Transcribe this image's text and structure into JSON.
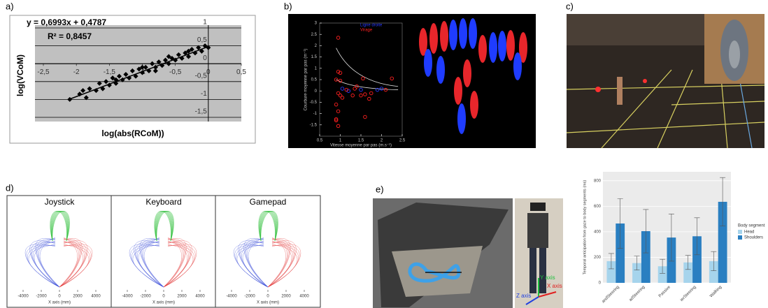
{
  "panel_labels": [
    "a)",
    "b)",
    "c)",
    "d)",
    "e)"
  ],
  "panel_e": {
    "axis_labels": [
      "Y axis",
      "Z axis",
      "X axis"
    ]
  },
  "chart_data": [
    {
      "type": "scatter",
      "annotations": [
        "y = 0,6993x + 0,4787",
        "R² = 0,8457"
      ],
      "fit": {
        "slope": 0.6993,
        "intercept": 0.4787
      },
      "xlabel": "log(abs(RCoM))",
      "ylabel": "log(VCoM)",
      "xlim": [
        -2.5,
        0.5
      ],
      "ylim": [
        -1.5,
        1
      ],
      "xticks": [
        {
          "value": -2.5,
          "label": "-2,5"
        },
        -2,
        {
          "value": -1.5,
          "label": "-1,5"
        },
        -1,
        {
          "value": -0.5,
          "label": "-0,5"
        },
        0,
        {
          "value": 0.5,
          "label": "0,5"
        }
      ],
      "yticks": [
        1,
        {
          "value": 0.5,
          "label": "0,5"
        },
        0,
        {
          "value": -0.5,
          "label": "-0,5"
        },
        -1,
        {
          "value": -1.5,
          "label": "-1,5"
        }
      ],
      "grid": true,
      "color": "#000000",
      "background": "#c0c0c0",
      "x": [
        -2.1,
        -1.95,
        -1.85,
        -1.8,
        -1.7,
        -1.65,
        -1.6,
        -1.55,
        -1.5,
        -1.45,
        -1.4,
        -1.35,
        -1.3,
        -1.25,
        -1.2,
        -1.15,
        -1.1,
        -1.05,
        -1.0,
        -0.95,
        -0.9,
        -0.85,
        -0.8,
        -0.75,
        -0.7,
        -0.65,
        -0.6,
        -0.55,
        -0.5,
        -0.45,
        -0.4,
        -0.35,
        -0.3,
        -0.25,
        -0.2,
        -0.15,
        -0.1,
        -0.05,
        0,
        -1.9,
        -1.0,
        -0.6,
        -0.3,
        -0.8,
        -1.4
      ],
      "values": [
        -1.0,
        -0.85,
        -0.95,
        -0.7,
        -0.75,
        -0.55,
        -0.7,
        -0.5,
        -0.6,
        -0.4,
        -0.55,
        -0.35,
        -0.45,
        -0.3,
        -0.4,
        -0.2,
        -0.35,
        -0.15,
        -0.25,
        -0.1,
        -0.2,
        0,
        -0.1,
        0.05,
        -0.05,
        0.1,
        0,
        0.15,
        0.1,
        0.25,
        0.15,
        0.3,
        0.2,
        0.4,
        0.3,
        0.45,
        0.35,
        0.5,
        0.45,
        -0.75,
        -0.1,
        0.2,
        0.35,
        -0.2,
        -0.45
      ]
    },
    {
      "type": "scatter",
      "xlabel": "Vitesse moyenne par pas (m.s⁻¹)",
      "ylabel": "Courbure moyenne par pas (m⁻¹)",
      "xlim": [
        0.5,
        2.5
      ],
      "ylim": [
        -2,
        3
      ],
      "xticks": [
        0.5,
        1,
        1.5,
        2,
        2.5
      ],
      "yticks": [
        -1.5,
        -1,
        -0.5,
        0,
        0.5,
        1,
        1.5,
        2,
        2.5,
        3
      ],
      "grid": false,
      "background": "#000000",
      "series": [
        {
          "name": "Ligne droite",
          "color": "#2b3bff",
          "x": [
            1.05,
            1.2,
            1.5,
            1.9,
            2.0
          ],
          "values": [
            0.1,
            0,
            0.05,
            0.05,
            0.1
          ]
        },
        {
          "name": "Virage",
          "color": "#ff2020",
          "x": [
            0.95,
            0.95,
            1.0,
            0.9,
            1.0,
            0.95,
            1.0,
            1.05,
            0.9,
            0.95,
            0.9,
            0.95,
            0.9,
            1.15,
            1.3,
            1.4,
            1.5,
            1.55,
            1.6,
            1.6,
            1.7,
            1.75,
            2.1,
            2.25,
            1.35
          ],
          "values": [
            2.35,
            0.85,
            0.8,
            0.5,
            0.45,
            -0.1,
            -0.2,
            -0.3,
            -0.6,
            -0.9,
            -1.25,
            -1.55,
            -1.3,
            0.05,
            -0.2,
            0.2,
            -0.2,
            0.55,
            -0.15,
            -1.15,
            -0.35,
            -0.1,
            0.05,
            0.55,
            0.1
          ]
        }
      ]
    },
    {
      "type": "trajectory",
      "title": "Joystick",
      "xlabel": "X axis (mm)",
      "xlim": [
        -5000,
        5000
      ],
      "xticks": [
        -4000,
        -2000,
        0,
        2000,
        4000
      ]
    },
    {
      "type": "trajectory",
      "title": "Keyboard",
      "xlabel": "X axis (mm)",
      "xlim": [
        -5000,
        5000
      ],
      "xticks": [
        -4000,
        -2000,
        0,
        2000,
        4000
      ]
    },
    {
      "type": "trajectory",
      "title": "Gamepad",
      "xlabel": "X axis (mm)",
      "xlim": [
        -5000,
        5000
      ],
      "xticks": [
        -4000,
        -2000,
        0,
        2000,
        4000
      ]
    },
    {
      "type": "bar",
      "ylabel": "Temporal anticipation from gaze to body segments (ms)",
      "categories": [
        "andSteering",
        "adSteering",
        "Passive",
        "ierSteering",
        "Walking"
      ],
      "ylim": [
        0,
        870
      ],
      "yticks": [
        0,
        200,
        400,
        600,
        800
      ],
      "grid": true,
      "background": "#ebebeb",
      "legend_title": "Body segment",
      "legend": "right",
      "series": [
        {
          "name": "Head",
          "color": "#a6d4ec",
          "values": [
            170,
            155,
            130,
            160,
            170
          ],
          "errors": [
            60,
            55,
            55,
            55,
            75
          ]
        },
        {
          "name": "Shoulders",
          "color": "#2a7fc1",
          "values": [
            465,
            405,
            355,
            365,
            635
          ],
          "errors": [
            195,
            170,
            185,
            145,
            190
          ]
        }
      ]
    }
  ]
}
